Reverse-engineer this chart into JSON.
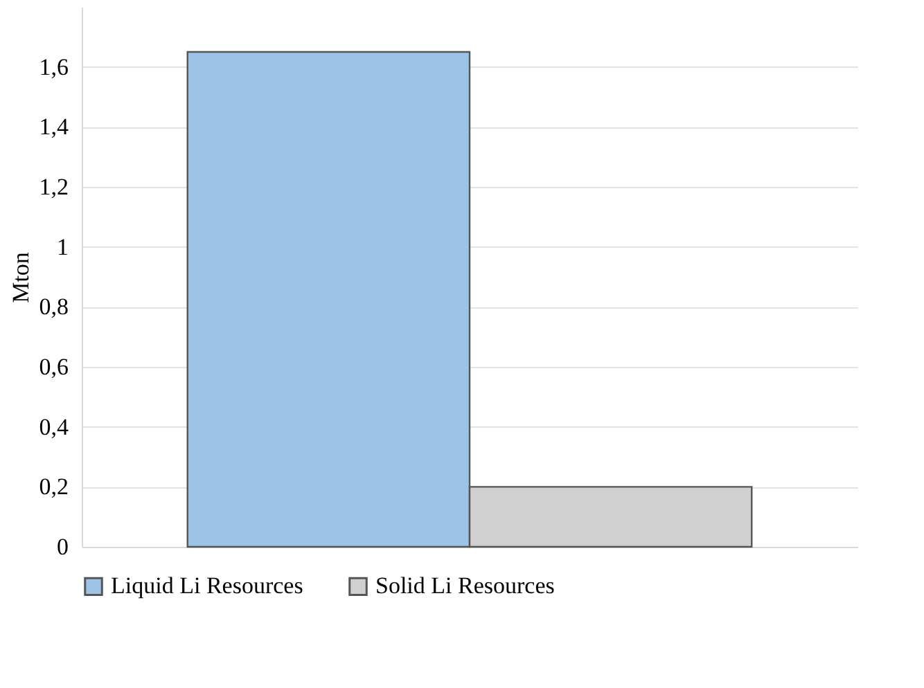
{
  "chart_data": {
    "type": "bar",
    "ylabel": "Mton",
    "categories": [
      null
    ],
    "series": [
      {
        "name": "Liquid Li Resources",
        "color": "#9dc3e6",
        "values": [
          1.65
        ]
      },
      {
        "name": "Solid Li Resources",
        "color": "#d0d0d0",
        "values": [
          0.2
        ]
      }
    ],
    "ylim": [
      0,
      1.8
    ],
    "yticks": [
      {
        "value": 0,
        "label": "0"
      },
      {
        "value": 0.2,
        "label": "0,2"
      },
      {
        "value": 0.4,
        "label": "0,4"
      },
      {
        "value": 0.6,
        "label": "0,6"
      },
      {
        "value": 0.8,
        "label": "0,8"
      },
      {
        "value": 1,
        "label": "1"
      },
      {
        "value": 1.2,
        "label": "1,2"
      },
      {
        "value": 1.4,
        "label": "1,4"
      },
      {
        "value": 1.6,
        "label": "1,6"
      }
    ],
    "grid": "y",
    "legend": "bottom"
  }
}
